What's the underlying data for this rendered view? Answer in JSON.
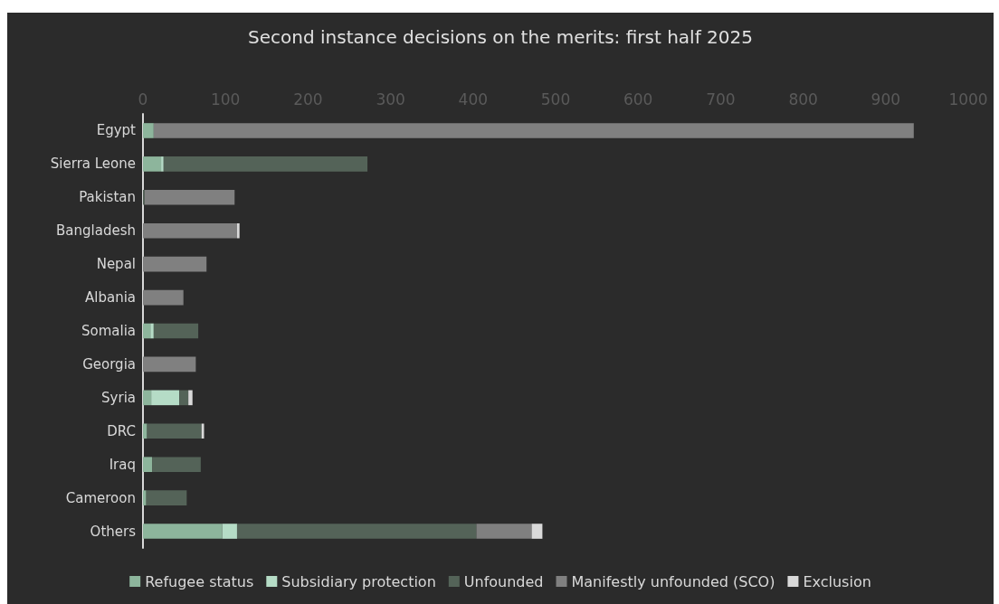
{
  "chart_data": {
    "type": "bar",
    "orientation": "horizontal",
    "stacked": true,
    "title": "Second instance decisions on the merits: first half 2025",
    "categories": [
      "Egypt",
      "Sierra Leone",
      "Pakistan",
      "Bangladesh",
      "Nepal",
      "Albania",
      "Somalia",
      "Georgia",
      "Syria",
      "DRC",
      "Iraq",
      "Cameroon",
      "Others"
    ],
    "series": [
      {
        "name": "Refugee status",
        "color": "#8db59c",
        "values": [
          13,
          22,
          0,
          0,
          0,
          0,
          9,
          0,
          10,
          5,
          11,
          4,
          96
        ]
      },
      {
        "name": "Subsidiary protection",
        "color": "#b5dcc6",
        "values": [
          0,
          3,
          0,
          0,
          0,
          0,
          4,
          0,
          34,
          0,
          0,
          0,
          18
        ]
      },
      {
        "name": "Unfounded",
        "color": "#546358",
        "values": [
          0,
          247,
          2,
          0,
          0,
          0,
          54,
          0,
          11,
          66,
          59,
          49,
          290
        ]
      },
      {
        "name": "Manifestly unfounded (SCO)",
        "color": "#808080",
        "values": [
          921,
          0,
          109,
          114,
          77,
          49,
          0,
          64,
          0,
          0,
          0,
          0,
          67
        ]
      },
      {
        "name": "Exclusion",
        "color": "#d9d9d9",
        "values": [
          0,
          0,
          0,
          3,
          0,
          0,
          0,
          0,
          5,
          3,
          0,
          0,
          13
        ]
      }
    ],
    "xlim": [
      0,
      1000
    ],
    "xticks": [
      0,
      100,
      200,
      300,
      400,
      500,
      600,
      700,
      800,
      900,
      1000
    ],
    "grid": false,
    "legend": "bottom"
  }
}
